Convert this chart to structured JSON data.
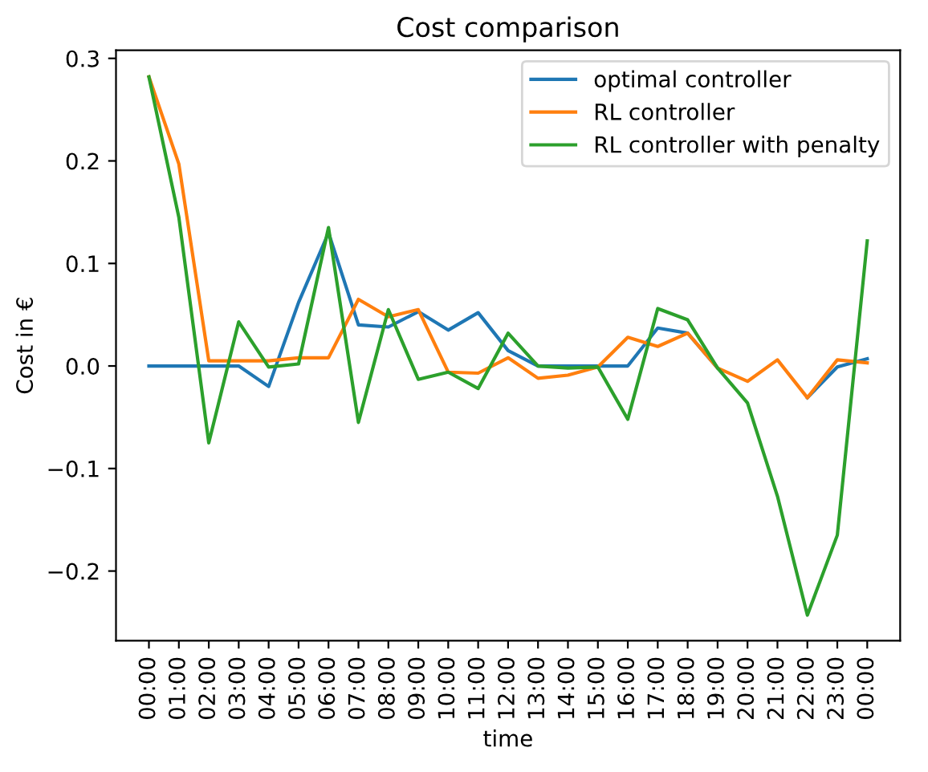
{
  "chart_data": {
    "type": "line",
    "title": "Cost comparison",
    "xlabel": "time",
    "ylabel": "Cost in €",
    "categories": [
      "00:00",
      "01:00",
      "02:00",
      "03:00",
      "04:00",
      "05:00",
      "06:00",
      "07:00",
      "08:00",
      "09:00",
      "10:00",
      "11:00",
      "12:00",
      "13:00",
      "14:00",
      "15:00",
      "16:00",
      "17:00",
      "18:00",
      "19:00",
      "20:00",
      "21:00",
      "22:00",
      "23:00",
      "00:00"
    ],
    "series": [
      {
        "name": "optimal controller",
        "color": "#1f77b4",
        "values": [
          0,
          0,
          0,
          0,
          -0.02,
          0.062,
          0.13,
          0.04,
          0.038,
          0.053,
          0.035,
          0.052,
          0.015,
          0,
          0,
          0,
          0,
          0.037,
          0.032,
          -0.002,
          null,
          null,
          -0.031,
          -0.001,
          0.007
        ]
      },
      {
        "name": "RL controller",
        "color": "#ff7f0e",
        "values": [
          0.282,
          0.197,
          0.005,
          0.005,
          0.005,
          0.008,
          0.008,
          0.065,
          0.048,
          0.055,
          -0.006,
          -0.007,
          0.008,
          -0.012,
          -0.009,
          -0.001,
          0.028,
          0.019,
          0.032,
          -0.002,
          -0.015,
          0.006,
          -0.031,
          0.006,
          0.003
        ]
      },
      {
        "name": "RL controller with penalty",
        "color": "#2ca02c",
        "values": [
          0.282,
          0.145,
          -0.075,
          0.043,
          -0.001,
          0.002,
          0.135,
          -0.055,
          0.055,
          -0.013,
          -0.006,
          -0.022,
          0.032,
          0,
          -0.002,
          -0.001,
          -0.052,
          0.056,
          0.045,
          -0.002,
          -0.036,
          -0.127,
          -0.243,
          -0.165,
          0.122
        ]
      }
    ],
    "ylim": [
      -0.268,
      0.308
    ],
    "yticks": [
      {
        "value": -0.2,
        "label": "−0.2"
      },
      {
        "value": -0.1,
        "label": "−0.1"
      },
      {
        "value": 0,
        "label": "0.0"
      },
      {
        "value": 0.1,
        "label": "0.1"
      },
      {
        "value": 0.2,
        "label": "0.2"
      },
      {
        "value": 0.3,
        "label": "0.3"
      }
    ],
    "legend": "top right",
    "marker": "none",
    "line_style": "solid"
  }
}
